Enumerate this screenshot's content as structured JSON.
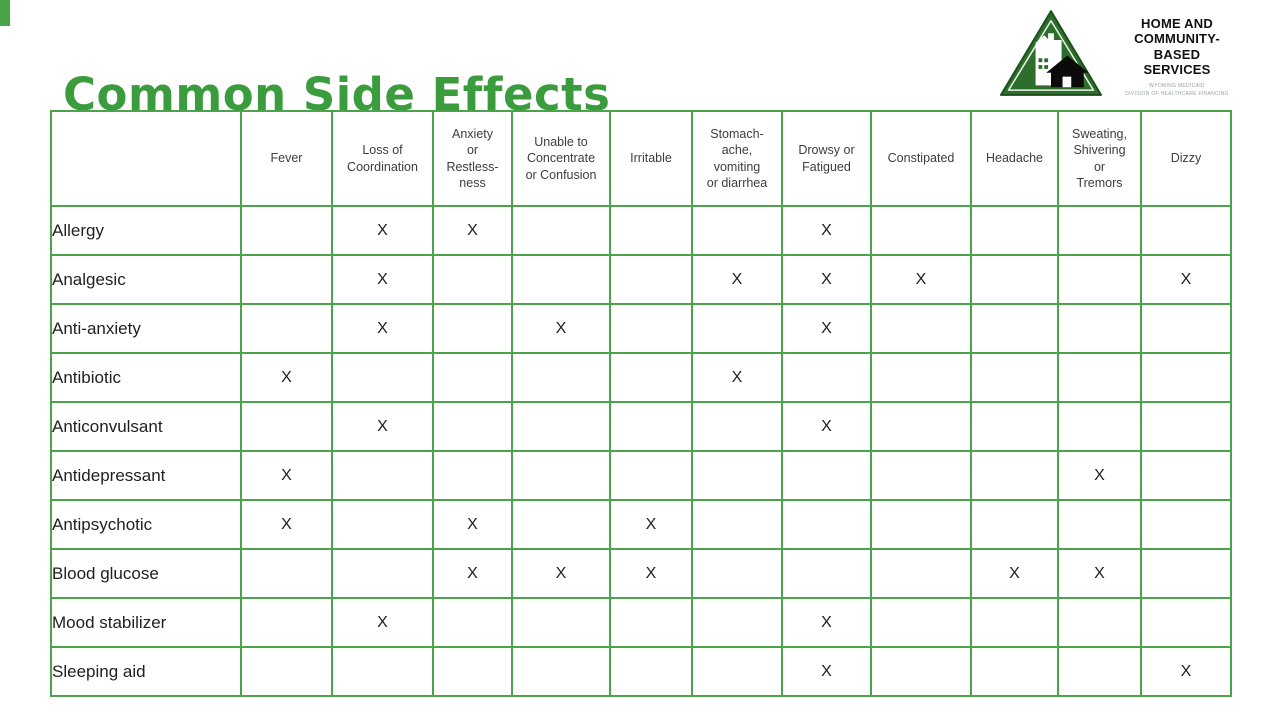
{
  "slide": {
    "title": "Common Side Effects",
    "title_color": "#3a9c3d",
    "table_border_color": "#4aa44a"
  },
  "logo": {
    "org_name": "HOME AND\nCOMMUNITY-\nBASED\nSERVICES",
    "sub_text": "WYOMING MEDICAID\nDIVISION OF HEALTHCARE FINANCING",
    "triangle_fill": "#2d6e2d",
    "icon": "triangle-house-logo"
  },
  "table": {
    "mark_symbol": "X",
    "columns": [
      "Fever",
      "Loss of\nCoordination",
      "Anxiety\nor\nRestless-\nness",
      "Unable to\nConcentrate\nor Confusion",
      "Irritable",
      "Stomach-\nache,\nvomiting\nor diarrhea",
      "Drowsy or\nFatigued",
      "Constipated",
      "Headache",
      "Sweating,\nShivering\nor\nTremors",
      "Dizzy"
    ],
    "rows": [
      {
        "label": "Allergy",
        "marks": [
          "",
          "X",
          "X",
          "",
          "",
          "",
          "X",
          "",
          "",
          "",
          ""
        ]
      },
      {
        "label": "Analgesic",
        "marks": [
          "",
          "X",
          "",
          "",
          "",
          "X",
          "X",
          "X",
          "",
          "",
          "X"
        ]
      },
      {
        "label": "Anti-anxiety",
        "marks": [
          "",
          "X",
          "",
          "X",
          "",
          "",
          "X",
          "",
          "",
          "",
          ""
        ]
      },
      {
        "label": "Antibiotic",
        "marks": [
          "X",
          "",
          "",
          "",
          "",
          "X",
          "",
          "",
          "",
          "",
          ""
        ]
      },
      {
        "label": "Anticonvulsant",
        "marks": [
          "",
          "X",
          "",
          "",
          "",
          "",
          "X",
          "",
          "",
          "",
          ""
        ]
      },
      {
        "label": "Antidepressant",
        "marks": [
          "X",
          "",
          "",
          "",
          "",
          "",
          "",
          "",
          "",
          "X",
          ""
        ]
      },
      {
        "label": "Antipsychotic",
        "marks": [
          "X",
          "",
          "X",
          "",
          "X",
          "",
          "",
          "",
          "",
          "",
          ""
        ]
      },
      {
        "label": "Blood glucose",
        "marks": [
          "",
          "",
          "X",
          "X",
          "X",
          "",
          "",
          "",
          "X",
          "X",
          ""
        ]
      },
      {
        "label": "Mood stabilizer",
        "marks": [
          "",
          "X",
          "",
          "",
          "",
          "",
          "X",
          "",
          "",
          "",
          ""
        ]
      },
      {
        "label": "Sleeping aid",
        "marks": [
          "",
          "",
          "",
          "",
          "",
          "",
          "X",
          "",
          "",
          "",
          "X"
        ]
      }
    ]
  }
}
